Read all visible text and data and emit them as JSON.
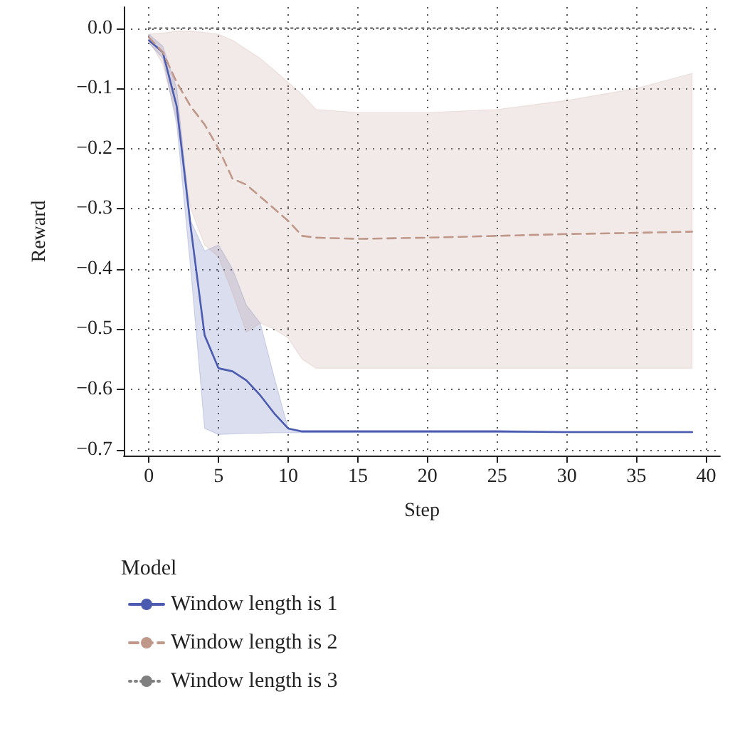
{
  "chart_data": {
    "type": "line",
    "xlabel": "Step",
    "ylabel": "Reward",
    "legend_title": "Model",
    "legend": "bottom",
    "grid": true,
    "marker": "none",
    "x": [
      0,
      1,
      2,
      3,
      4,
      5,
      6,
      7,
      8,
      9,
      10,
      11,
      12,
      15,
      20,
      25,
      30,
      35,
      39
    ],
    "xlim": [
      -1.8,
      41
    ],
    "xticks": [
      0,
      5,
      10,
      15,
      20,
      25,
      30,
      35,
      40
    ],
    "ylim": [
      -0.71,
      0.035
    ],
    "yticks": [
      {
        "value": 0,
        "label": "0.0"
      },
      {
        "value": -0.1,
        "label": "−0.1"
      },
      {
        "value": -0.2,
        "label": "−0.2"
      },
      {
        "value": -0.3,
        "label": "−0.3"
      },
      {
        "value": -0.4,
        "label": "−0.4"
      },
      {
        "value": -0.5,
        "label": "−0.5"
      },
      {
        "value": -0.6,
        "label": "−0.6"
      },
      {
        "value": -0.7,
        "label": "−0.7"
      }
    ],
    "series": [
      {
        "name": "Window length is 1",
        "color": "#4a5bb0",
        "line_style": "solid",
        "values": [
          -0.02,
          -0.04,
          -0.13,
          -0.33,
          -0.51,
          -0.565,
          -0.57,
          -0.585,
          -0.61,
          -0.64,
          -0.665,
          -0.67,
          -0.67,
          -0.67,
          -0.67,
          -0.67,
          -0.671,
          -0.671,
          -0.671
        ],
        "lower": [
          -0.025,
          -0.05,
          -0.16,
          -0.4,
          -0.665,
          -0.675,
          -0.674,
          -0.673,
          -0.673,
          -0.672,
          -0.672,
          -0.672,
          -0.672,
          -0.672,
          -0.672,
          -0.672,
          -0.672,
          -0.672,
          -0.672
        ],
        "upper": [
          -0.01,
          -0.03,
          -0.1,
          -0.32,
          -0.37,
          -0.36,
          -0.4,
          -0.46,
          -0.49,
          -0.58,
          -0.665,
          -0.668,
          -0.668,
          -0.668,
          -0.668,
          -0.668,
          -0.67,
          -0.67,
          -0.67
        ]
      },
      {
        "name": "Window length is 2",
        "color": "#c0988a",
        "line_style": "dashed",
        "values": [
          -0.015,
          -0.04,
          -0.09,
          -0.13,
          -0.16,
          -0.2,
          -0.25,
          -0.26,
          -0.28,
          -0.3,
          -0.32,
          -0.345,
          -0.348,
          -0.35,
          -0.348,
          -0.345,
          -0.342,
          -0.34,
          -0.338
        ],
        "lower": [
          -0.02,
          -0.06,
          -0.15,
          -0.3,
          -0.36,
          -0.38,
          -0.44,
          -0.505,
          -0.49,
          -0.5,
          -0.515,
          -0.55,
          -0.565,
          -0.565,
          -0.565,
          -0.565,
          -0.565,
          -0.565,
          -0.565
        ],
        "upper": [
          -0.01,
          -0.008,
          -0.005,
          -0.005,
          -0.007,
          -0.01,
          -0.02,
          -0.035,
          -0.05,
          -0.07,
          -0.09,
          -0.11,
          -0.135,
          -0.14,
          -0.14,
          -0.135,
          -0.12,
          -0.1,
          -0.075
        ]
      },
      {
        "name": "Window length is 3",
        "color": "#808080",
        "line_style": "dotted",
        "x": [
          0,
          39
        ],
        "values": [
          0,
          0
        ]
      }
    ]
  }
}
